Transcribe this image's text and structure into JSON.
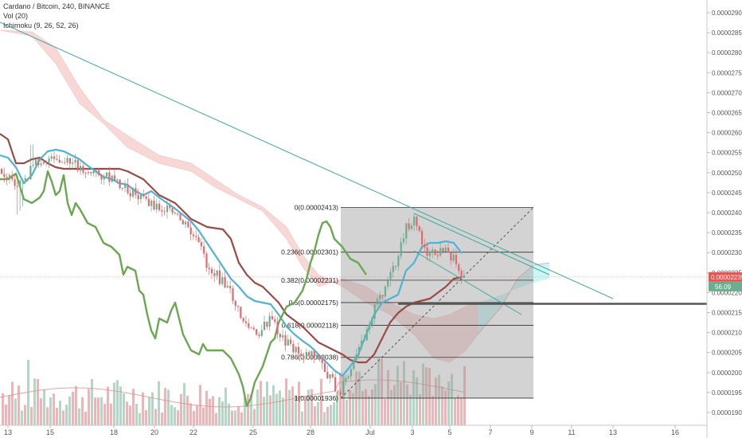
{
  "legend": {
    "symbol": "Cardano / Bitcoin, 240, BINANCE",
    "vol": "Vol (20)",
    "ichimoku": "Ichimoku (9, 26, 52, 26)"
  },
  "chart_data": {
    "type": "candlestick",
    "y_axis": {
      "range": [
        1.89e-05,
        2.9e-05
      ],
      "ticks": [
        "0.00002900",
        "0.00002850",
        "0.00002800",
        "0.00002750",
        "0.00002700",
        "0.00002650",
        "0.00002600",
        "0.00002550",
        "0.00002500",
        "0.00002450",
        "0.00002400",
        "0.00002350",
        "0.00002300",
        "0.00002250",
        "0.00002200",
        "0.00002150",
        "0.00002100",
        "0.00002050",
        "0.00002000",
        "0.00001950",
        "0.00001900"
      ]
    },
    "x_axis": {
      "ticks": [
        "13",
        "15",
        "18",
        "20",
        "22",
        "25",
        "28",
        "Jul",
        "3",
        "5",
        "7",
        "9",
        "11",
        "13",
        "16"
      ]
    },
    "last_price": "0.00002239",
    "volume_badge": "56.09",
    "fib_levels": [
      {
        "label": "0(0.00002413)",
        "value": 2.413e-05
      },
      {
        "label": "0.236(0.00002301)",
        "value": 2.301e-05
      },
      {
        "label": "0.382(0.00002231)",
        "value": 2.231e-05
      },
      {
        "label": "0.5(0.00002175)",
        "value": 2.175e-05
      },
      {
        "label": "0.618(0.00002118)",
        "value": 2.118e-05
      },
      {
        "label": "0.786(0.00002038)",
        "value": 2.038e-05
      },
      {
        "label": "1(0.00001936)",
        "value": 1.936e-05
      }
    ],
    "horizontal_line_value": 2.17e-05,
    "colors": {
      "up": "#6aae8f",
      "down": "#e06a6f",
      "tenkan": "#4fb3d4",
      "kijun": "#9b4a45",
      "chikou": "#6aa84f",
      "cloud_bear": "#f4b7b7",
      "cloud_bull": "#bff2f2",
      "trendline": "#3fa9a0",
      "fib_box": "#9e9e9e",
      "price_badge": "#ef5350"
    }
  }
}
